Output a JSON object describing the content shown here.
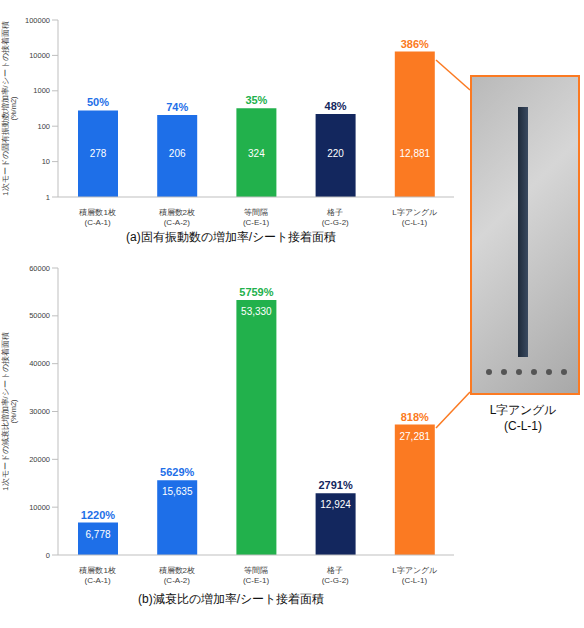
{
  "chart_data": [
    {
      "type": "bar",
      "title": "(a)固有振動数の増加率/シート接着面積",
      "y_label": "1次モードの固有振動数増加率/シートの接着面積 (%/m2)",
      "categories": [
        "積層数1枚 (C-A-1)",
        "積層数2枚 (C-A-2)",
        "等間隔 (C-E-1)",
        "格子 (C-G-2)",
        "L字アングル (C-L-1)"
      ],
      "values": [
        278,
        206,
        324,
        220,
        12881
      ],
      "value_labels": [
        "278",
        "206",
        "324",
        "220",
        "12,881"
      ],
      "annotations": [
        "50%",
        "74%",
        "35%",
        "48%",
        "386%"
      ],
      "colors": [
        "#1e6fe8",
        "#1e6fe8",
        "#22b14c",
        "#13275e",
        "#fb7a22"
      ],
      "log": "y",
      "ylim": [
        1,
        100000
      ],
      "yticks": [
        1,
        10,
        100,
        1000,
        10000,
        100000
      ],
      "grid": false,
      "data_labels": true
    },
    {
      "type": "bar",
      "title": "(b)減衰比の増加率/シート接着面積",
      "y_label": "1次モードの減衰比増加率/シートの接着面積 (%/m2)",
      "categories": [
        "積層数1枚 (C-A-1)",
        "積層数2枚 (C-A-2)",
        "等間隔 (C-E-1)",
        "格子 (C-G-2)",
        "L字アングル (C-L-1)"
      ],
      "values": [
        6778,
        15635,
        53330,
        12924,
        27281
      ],
      "value_labels": [
        "6,778",
        "15,635",
        "53,330",
        "12,924",
        "27,281"
      ],
      "annotations": [
        "1220%",
        "5629%",
        "5759%",
        "2791%",
        "818%"
      ],
      "colors": [
        "#1e6fe8",
        "#1e6fe8",
        "#22b14c",
        "#13275e",
        "#fb7a22"
      ],
      "ylim": [
        0,
        60000
      ],
      "yticks": [
        0,
        10000,
        20000,
        30000,
        40000,
        50000,
        60000
      ],
      "grid": false,
      "data_labels": true
    }
  ],
  "photo": {
    "label": "L字アングル (C-L-1)"
  }
}
